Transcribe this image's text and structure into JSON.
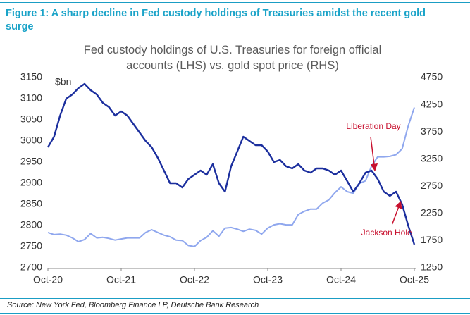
{
  "figure_title": "Figure 1: A sharp decline in Fed custody holdings of Treasuries amidst the recent gold surge",
  "source": "Source: New York Fed, Bloomberg Finance LP, Deutsche Bank Research",
  "chart_data": {
    "type": "line",
    "title": "Fed custody holdings of U.S. Treasuries for foreign official accounts (LHS) vs. gold spot price (RHS)",
    "y_label": "$bn",
    "x": [
      "Oct-20",
      "Nov-20",
      "Dec-20",
      "Jan-21",
      "Feb-21",
      "Mar-21",
      "Apr-21",
      "May-21",
      "Jun-21",
      "Jul-21",
      "Aug-21",
      "Sep-21",
      "Oct-21",
      "Nov-21",
      "Dec-21",
      "Jan-22",
      "Feb-22",
      "Mar-22",
      "Apr-22",
      "May-22",
      "Jun-22",
      "Jul-22",
      "Aug-22",
      "Sep-22",
      "Oct-22",
      "Nov-22",
      "Dec-22",
      "Jan-23",
      "Feb-23",
      "Mar-23",
      "Apr-23",
      "May-23",
      "Jun-23",
      "Jul-23",
      "Aug-23",
      "Sep-23",
      "Oct-23",
      "Nov-23",
      "Dec-23",
      "Jan-24",
      "Feb-24",
      "Mar-24",
      "Apr-24",
      "May-24",
      "Jun-24",
      "Jul-24",
      "Aug-24",
      "Sep-24",
      "Oct-24",
      "Nov-24",
      "Dec-24",
      "Jan-25",
      "Feb-25",
      "Mar-25",
      "Apr-25",
      "May-25",
      "Jun-25",
      "Jul-25",
      "Aug-25",
      "Sep-25",
      "Oct-25"
    ],
    "series": [
      {
        "name": "Fed custody holdings (LHS)",
        "color": "#1c2f9e",
        "axis": "y",
        "values": [
          2985,
          3010,
          3060,
          3100,
          3110,
          3125,
          3135,
          3120,
          3110,
          3090,
          3080,
          3060,
          3070,
          3060,
          3040,
          3020,
          3000,
          2985,
          2960,
          2930,
          2900,
          2900,
          2890,
          2910,
          2920,
          2930,
          2920,
          2945,
          2900,
          2880,
          2940,
          2975,
          3010,
          3000,
          2990,
          2990,
          2975,
          2950,
          2955,
          2940,
          2935,
          2945,
          2930,
          2925,
          2935,
          2935,
          2930,
          2920,
          2930,
          2905,
          2880,
          2900,
          2925,
          2930,
          2910,
          2880,
          2870,
          2880,
          2850,
          2800,
          2755
        ]
      },
      {
        "name": "Gold spot price (RHS)",
        "color": "#8fa7ee",
        "axis": "y2",
        "values": [
          1900,
          1860,
          1870,
          1850,
          1800,
          1730,
          1770,
          1880,
          1800,
          1810,
          1790,
          1760,
          1780,
          1800,
          1800,
          1800,
          1900,
          1950,
          1900,
          1850,
          1820,
          1760,
          1750,
          1660,
          1640,
          1750,
          1810,
          1930,
          1830,
          1980,
          1990,
          1960,
          1920,
          1960,
          1940,
          1870,
          1980,
          2040,
          2060,
          2040,
          2040,
          2230,
          2290,
          2330,
          2330,
          2440,
          2500,
          2630,
          2740,
          2650,
          2620,
          2800,
          2850,
          3120,
          3290,
          3290,
          3300,
          3330,
          3440,
          3860,
          4200
        ]
      }
    ],
    "ylim": [
      2700,
      3150
    ],
    "yticks": [
      2700,
      2750,
      2800,
      2850,
      2900,
      2950,
      3000,
      3050,
      3100,
      3150
    ],
    "y2lim": [
      1250,
      4750
    ],
    "y2ticks": [
      1250,
      1750,
      2250,
      2750,
      3250,
      3750,
      4250,
      4750
    ],
    "annotations": [
      {
        "text": "Liberation Day",
        "color": "#c8102e",
        "x": "Apr-25"
      },
      {
        "text": "Jackson Hole",
        "color": "#c8102e",
        "x": "Aug-25"
      }
    ]
  }
}
